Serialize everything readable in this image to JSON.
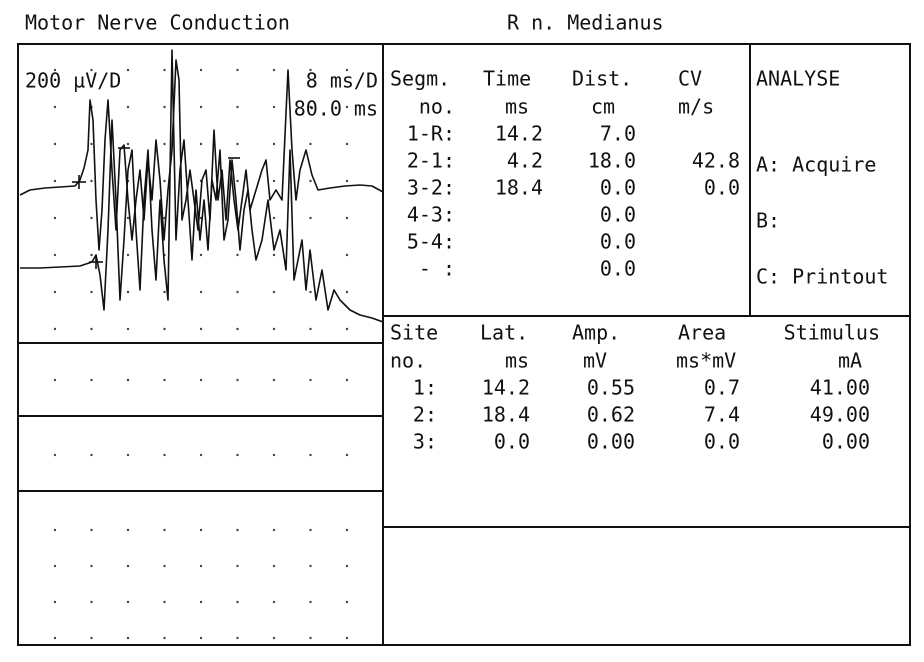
{
  "header": {
    "title": "Motor Nerve Conduction",
    "nerve": "R n. Medianus"
  },
  "trace_panel": {
    "amplitude_scale": "200 µV/D",
    "time_scale": "8 ms/D",
    "sweep": "80.0 ms"
  },
  "segments_table": {
    "headers": [
      [
        "Segm.",
        "no."
      ],
      [
        "Time",
        "ms"
      ],
      [
        "Dist.",
        "cm"
      ],
      [
        "CV",
        "m/s"
      ]
    ],
    "rows": [
      {
        "segment": "1-R:",
        "time": "14.2",
        "distance": "7.0"
      },
      {
        "segment": "2-1:",
        "time": "4.2",
        "distance": "18.0",
        "velocity": "42.8"
      },
      {
        "segment": "3-2:",
        "time": "18.4",
        "distance": "0.0",
        "velocity": "0.0"
      },
      {
        "segment": "4-3:",
        "distance": "0.0"
      },
      {
        "segment": "5-4:",
        "distance": "0.0"
      },
      {
        "segment": "- :",
        "distance": "0.0"
      }
    ]
  },
  "menu": {
    "title": "ANALYSE",
    "items": [
      "A: Acquire",
      "B:",
      "C: Printout"
    ]
  },
  "sites_table": {
    "headers": [
      [
        "Site",
        "no."
      ],
      [
        "Lat.",
        "ms"
      ],
      [
        "Amp.",
        "mV"
      ],
      [
        "Area",
        "ms*mV"
      ],
      [
        "Stimulus",
        "mA"
      ]
    ],
    "rows": [
      {
        "site": "1:",
        "latency": "14.2",
        "amplitude": "0.55",
        "area": "0.7",
        "stimulus": "41.00"
      },
      {
        "site": "2:",
        "latency": "18.4",
        "amplitude": "0.62",
        "area": "7.4",
        "stimulus": "49.00"
      },
      {
        "site": "3:",
        "latency": "0.0",
        "amplitude": "0.00",
        "area": "0.0",
        "stimulus": "0.00"
      }
    ]
  }
}
